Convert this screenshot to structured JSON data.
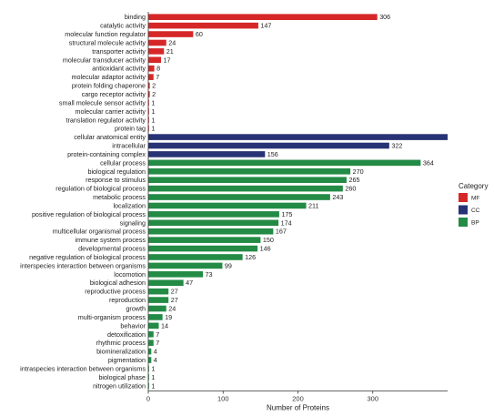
{
  "chart_data": {
    "type": "bar",
    "orientation": "horizontal",
    "xlabel": "Number of Proteins",
    "xlim": [
      0,
      400
    ],
    "xticks": [
      0,
      100,
      200,
      300
    ],
    "grid": false,
    "legend": {
      "title": "Category",
      "placement": "right",
      "entries": [
        {
          "key": "MF",
          "label": "MF",
          "color": "#d62728"
        },
        {
          "key": "CC",
          "label": "CC",
          "color": "#283375"
        },
        {
          "key": "BP",
          "label": "BP",
          "color": "#238b45"
        }
      ]
    },
    "categories": [
      {
        "name": "binding",
        "value": 306,
        "group": "MF"
      },
      {
        "name": "catalytic activity",
        "value": 147,
        "group": "MF"
      },
      {
        "name": "molecular function regulator",
        "value": 60,
        "group": "MF"
      },
      {
        "name": "structural molecule activity",
        "value": 24,
        "group": "MF"
      },
      {
        "name": "transporter activity",
        "value": 21,
        "group": "MF"
      },
      {
        "name": "molecular transducer activity",
        "value": 17,
        "group": "MF"
      },
      {
        "name": "antioxidant activity",
        "value": 8,
        "group": "MF"
      },
      {
        "name": "molecular adaptor activity",
        "value": 7,
        "group": "MF"
      },
      {
        "name": "protein folding chaperone",
        "value": 2,
        "group": "MF"
      },
      {
        "name": "cargo receptor activity",
        "value": 2,
        "group": "MF"
      },
      {
        "name": "small molecule sensor activity",
        "value": 1,
        "group": "MF"
      },
      {
        "name": "molecular carrier activity",
        "value": 1,
        "group": "MF"
      },
      {
        "name": "translation regulator activity",
        "value": 1,
        "group": "MF"
      },
      {
        "name": "protein tag",
        "value": 1,
        "group": "MF"
      },
      {
        "name": "cellular anatomical entity",
        "value": 400,
        "group": "CC",
        "label": ""
      },
      {
        "name": "intracellular",
        "value": 322,
        "group": "CC"
      },
      {
        "name": "protein-containing complex",
        "value": 156,
        "group": "CC"
      },
      {
        "name": "cellular process",
        "value": 364,
        "group": "BP"
      },
      {
        "name": "biological regulation",
        "value": 270,
        "group": "BP"
      },
      {
        "name": "response to stimulus",
        "value": 265,
        "group": "BP"
      },
      {
        "name": "regulation of biological process",
        "value": 260,
        "group": "BP"
      },
      {
        "name": "metabolic process",
        "value": 243,
        "group": "BP"
      },
      {
        "name": "localization",
        "value": 211,
        "group": "BP"
      },
      {
        "name": "positive regulation of biological process",
        "value": 175,
        "group": "BP"
      },
      {
        "name": "signaling",
        "value": 174,
        "group": "BP"
      },
      {
        "name": "multicellular organismal process",
        "value": 167,
        "group": "BP"
      },
      {
        "name": "immune system process",
        "value": 150,
        "group": "BP"
      },
      {
        "name": "developmental process",
        "value": 146,
        "group": "BP"
      },
      {
        "name": "negative regulation of biological process",
        "value": 126,
        "group": "BP"
      },
      {
        "name": "interspecies interaction between organisms",
        "value": 99,
        "group": "BP"
      },
      {
        "name": "locomotion",
        "value": 73,
        "group": "BP"
      },
      {
        "name": "biological adhesion",
        "value": 47,
        "group": "BP"
      },
      {
        "name": "reproductive process",
        "value": 27,
        "group": "BP"
      },
      {
        "name": "reproduction",
        "value": 27,
        "group": "BP"
      },
      {
        "name": "growth",
        "value": 24,
        "group": "BP"
      },
      {
        "name": "multi-organism process",
        "value": 19,
        "group": "BP"
      },
      {
        "name": "behavior",
        "value": 14,
        "group": "BP"
      },
      {
        "name": "detoxification",
        "value": 7,
        "group": "BP"
      },
      {
        "name": "rhythmic process",
        "value": 7,
        "group": "BP"
      },
      {
        "name": "biomineralization",
        "value": 4,
        "group": "BP"
      },
      {
        "name": "pigmentation",
        "value": 4,
        "group": "BP"
      },
      {
        "name": "intraspecies interaction between organisms",
        "value": 1,
        "group": "BP"
      },
      {
        "name": "biological phase",
        "value": 1,
        "group": "BP"
      },
      {
        "name": "nitrogen utilization",
        "value": 1,
        "group": "BP"
      }
    ]
  }
}
